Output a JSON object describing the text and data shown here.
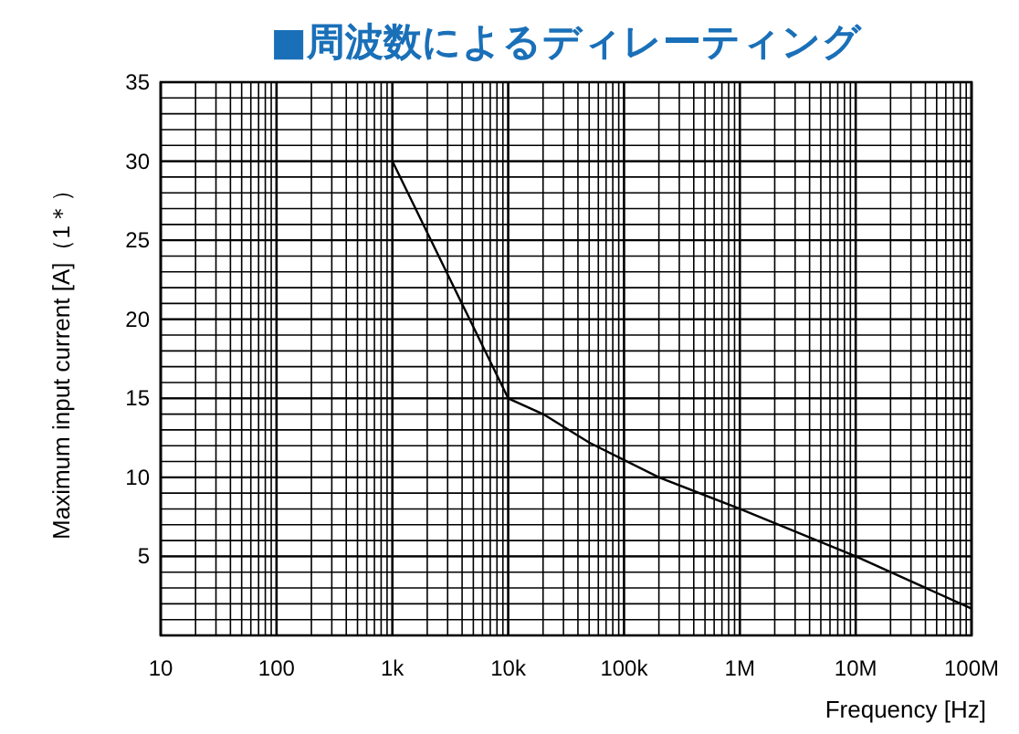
{
  "chart_data": {
    "type": "line",
    "title": "■周波数によるディレーティング",
    "xlabel": "Frequency [Hz]",
    "ylabel": "Maximum input current [A]（1＊）",
    "log": "x",
    "grid": true,
    "marker": "none",
    "line_style": "solid",
    "xlim": [
      10,
      100000000
    ],
    "ylim": [
      0,
      35
    ],
    "xticks": [
      10,
      100,
      {
        "value": 1000,
        "label": "1k"
      },
      {
        "value": 10000,
        "label": "10k"
      },
      {
        "value": 100000,
        "label": "100k"
      },
      {
        "value": 1000000,
        "label": "1M"
      },
      {
        "value": 10000000,
        "label": "10M"
      },
      {
        "value": 100000000,
        "label": "100M"
      }
    ],
    "yticks": [
      5,
      10,
      15,
      20,
      25,
      30,
      35
    ],
    "series": [
      {
        "color": "#000000",
        "x": [
          1000,
          10000,
          20000,
          50000,
          100000,
          200000,
          1000000,
          10000000,
          100000000
        ],
        "values": [
          30,
          15,
          14,
          12.2,
          11.1,
          10,
          8,
          5,
          1.7
        ]
      }
    ]
  }
}
